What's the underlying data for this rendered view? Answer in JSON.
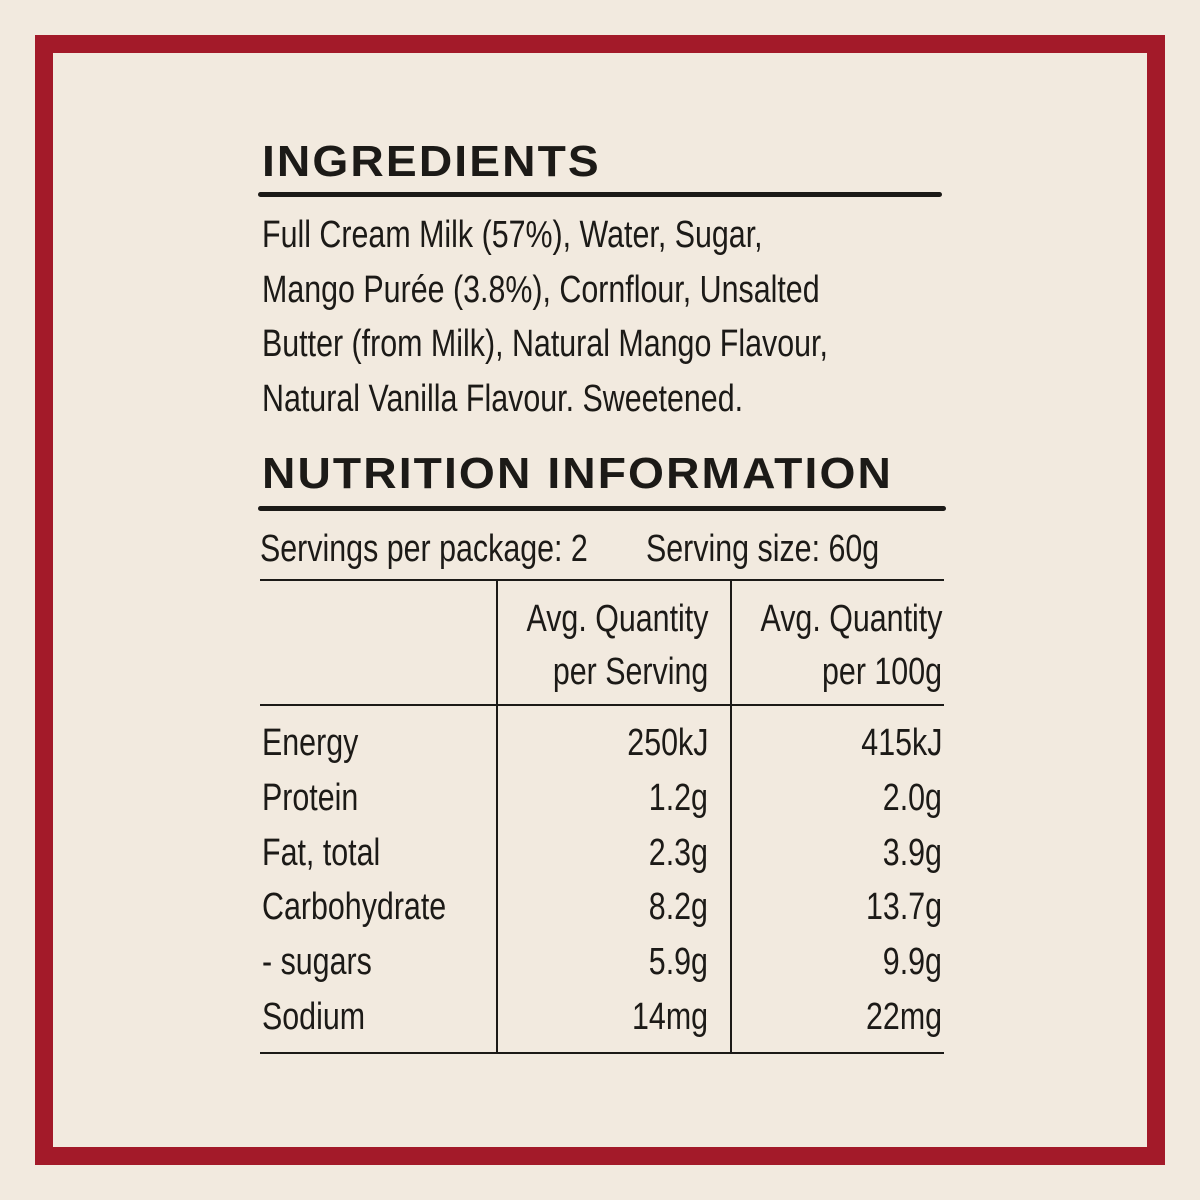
{
  "ingredients": {
    "title": "INGREDIENTS",
    "lines": [
      "Full Cream Milk (57%), Water, Sugar,",
      "Mango Purée (3.8%), Cornflour, Unsalted",
      "Butter (from Milk), Natural Mango Flavour,",
      "Natural Vanilla Flavour. Sweetened."
    ]
  },
  "nutrition": {
    "title": "NUTRITION INFORMATION",
    "servings_per_package": "Servings per package: 2",
    "serving_size": "Serving size: 60g",
    "headers": [
      [
        "Avg. Quantity",
        "per Serving"
      ],
      [
        "Avg. Quantity",
        "per 100g"
      ]
    ],
    "rows": [
      [
        "Energy",
        "250kJ",
        "415kJ"
      ],
      [
        "Protein",
        "1.2g",
        "2.0g"
      ],
      [
        "Fat, total",
        "2.3g",
        "3.9g"
      ],
      [
        "Carbohydrate",
        "8.2g",
        "13.7g"
      ],
      [
        "- sugars",
        "5.9g",
        "9.9g"
      ],
      [
        "Sodium",
        "14mg",
        "22mg"
      ]
    ]
  }
}
